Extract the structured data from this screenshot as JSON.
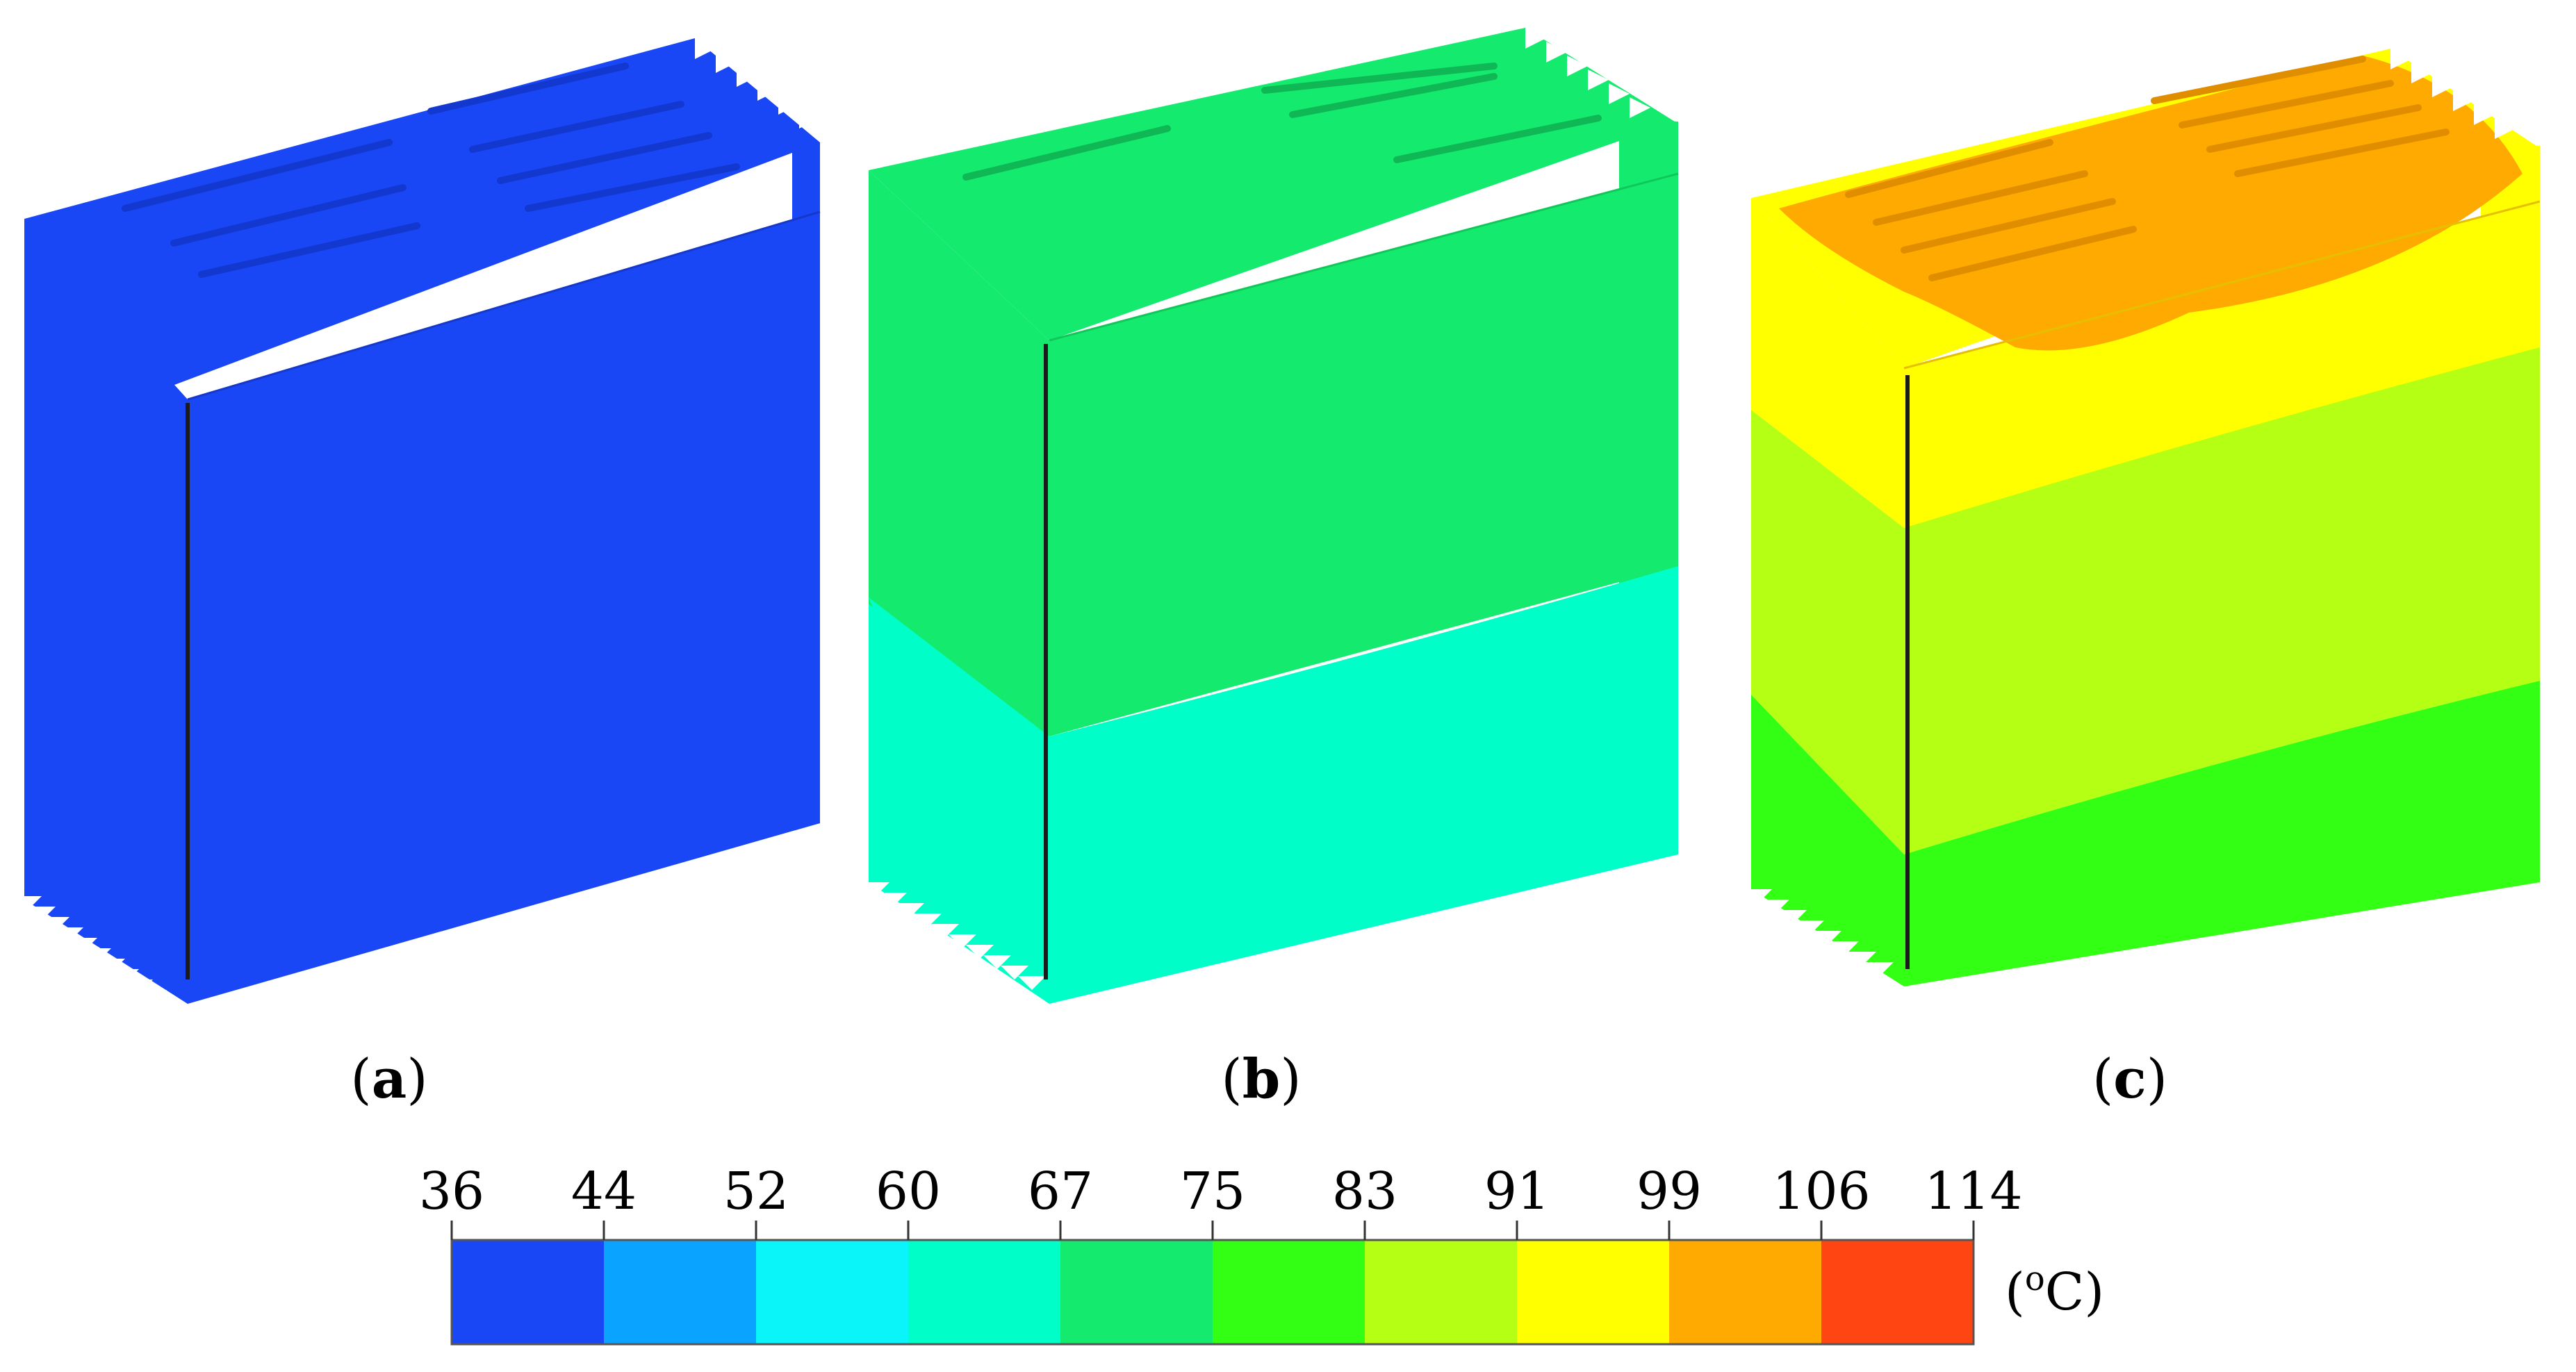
{
  "panels": [
    {
      "label_prefix": "(",
      "label_letter": "a",
      "label_suffix": ")"
    },
    {
      "label_prefix": "(",
      "label_letter": "b",
      "label_suffix": ")"
    },
    {
      "label_prefix": "(",
      "label_letter": "c",
      "label_suffix": ")"
    }
  ],
  "colorbar": {
    "ticks": [
      "36",
      "44",
      "52",
      "60",
      "67",
      "75",
      "83",
      "91",
      "99",
      "106",
      "114"
    ],
    "colors": [
      "#1a47f5",
      "#0aa3ff",
      "#0af5fa",
      "#00ffc8",
      "#14eb6e",
      "#33ff14",
      "#b5ff14",
      "#ffff00",
      "#ffaa00",
      "#ff4512"
    ],
    "unit_prefix": "(",
    "unit_sup": "o",
    "unit_suffix": "C)"
  },
  "palette": {
    "blue": "#1a47f5",
    "green": "#14eb6e",
    "aqua": "#00ffc8",
    "yellow": "#ffff00",
    "lime": "#b5ff14",
    "brightgreen": "#33ff14",
    "orange": "#ffaa00"
  }
}
